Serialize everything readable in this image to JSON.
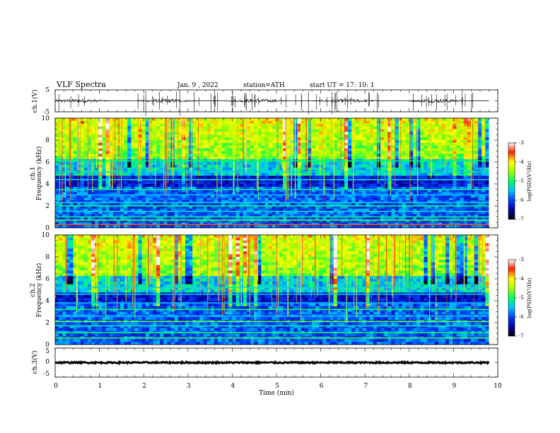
{
  "header": {
    "title": "VLF  Spectra",
    "date": "Jan.  9  , 2022",
    "station": "station=ATH",
    "start": "start  UT  =    17: 10: 1"
  },
  "chart_data": [
    {
      "type": "line",
      "name": "ch1-waveform",
      "ylabel": "ch.1(V)",
      "ylim": [
        -5,
        5
      ],
      "yticks": [
        "5",
        "-5"
      ],
      "xlim": [
        0,
        10
      ],
      "data_extent_min": 9.8,
      "baseline": 0,
      "noise_amplitude": 0.8,
      "spike_count": 70
    },
    {
      "type": "heatmap",
      "name": "ch1-spectrogram",
      "ylabel": "ch.1\nFrequency (kHz)",
      "ylabel_lines": [
        "ch.1",
        "Frequency (kHz)"
      ],
      "ylim": [
        0,
        10
      ],
      "yticks": [
        "0",
        "2",
        "4",
        "6",
        "8",
        "10"
      ],
      "xlim": [
        0,
        10
      ],
      "data_extent_min": 9.8,
      "colorbar": {
        "label": "log(PSD)(V²/Hz)",
        "range": [
          -7,
          -3
        ],
        "ticks": [
          "-3",
          "-4",
          "-5",
          "-6",
          "-7"
        ]
      },
      "bands_khz": [
        {
          "f": 0.3,
          "level": -3.6
        },
        {
          "f": 0.7,
          "level": -4.8
        },
        {
          "f": 1.0,
          "level": -5.2
        },
        {
          "f": 1.5,
          "level": -5.3
        },
        {
          "f": 2.0,
          "level": -5.0
        },
        {
          "f": 2.3,
          "level": -5.4
        },
        {
          "f": 3.0,
          "level": -5.5
        },
        {
          "f": 3.5,
          "level": -5.2
        },
        {
          "f": 4.4,
          "level": -5.4
        },
        {
          "f": 5.1,
          "level": -5.3
        },
        {
          "f": 6.1,
          "level": -5.0
        }
      ]
    },
    {
      "type": "heatmap",
      "name": "ch2-spectrogram",
      "ylabel": "ch.2\nFrequency (kHz)",
      "ylabel_lines": [
        "ch.2",
        "Frequency (kHz)"
      ],
      "ylim": [
        0,
        10
      ],
      "yticks": [
        "0",
        "2",
        "4",
        "6",
        "8",
        "10"
      ],
      "xlim": [
        0,
        10
      ],
      "data_extent_min": 9.8,
      "colorbar": {
        "label": "log(PSD)(V²/Hz)",
        "range": [
          -7,
          -3
        ],
        "ticks": [
          "-3",
          "-4",
          "-5",
          "-6",
          "-7"
        ]
      },
      "bands_khz": [
        {
          "f": 0.6,
          "level": -4.8
        },
        {
          "f": 1.1,
          "level": -5.0
        },
        {
          "f": 1.7,
          "level": -5.2
        },
        {
          "f": 2.1,
          "level": -4.7
        },
        {
          "f": 2.6,
          "level": -5.4
        },
        {
          "f": 3.2,
          "level": -5.0
        },
        {
          "f": 3.8,
          "level": -5.5
        },
        {
          "f": 4.6,
          "level": -5.4
        },
        {
          "f": 5.2,
          "level": -5.3
        }
      ]
    },
    {
      "type": "line",
      "name": "ch3-waveform",
      "ylabel": "ch.3(V)",
      "ylim": [
        -5,
        5
      ],
      "yticks": [
        "5",
        "0",
        "-5"
      ],
      "xlim": [
        0,
        10
      ],
      "data_extent_min": 9.8,
      "baseline": 0,
      "noise_amplitude": 0.25
    }
  ],
  "xaxis": {
    "label": "Time  (min)",
    "ticks": [
      "0",
      "1",
      "2",
      "3",
      "4",
      "5",
      "6",
      "7",
      "8",
      "9",
      "10"
    ]
  }
}
